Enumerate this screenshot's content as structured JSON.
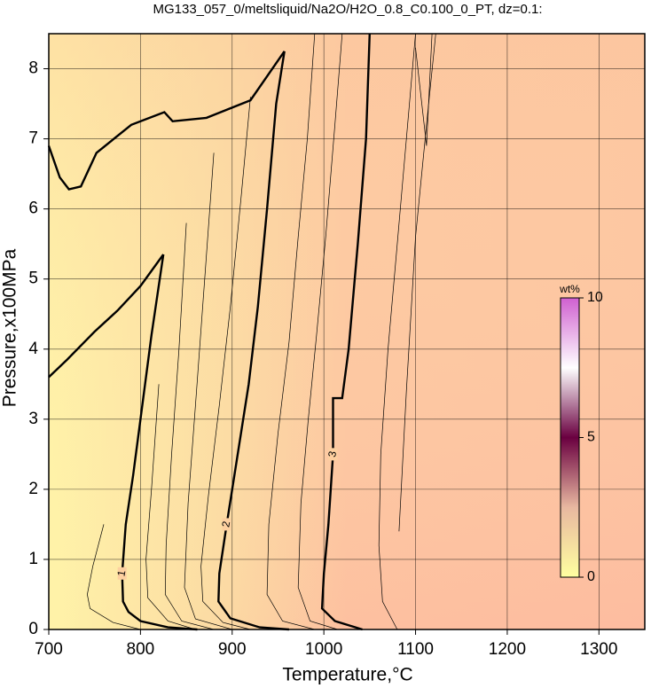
{
  "chart_data": {
    "type": "contour",
    "title": "MG133_057_0/meltsliquid/Na2O/H2O_0.8_C0.100_0_PT, dz=0.1:",
    "x_label": "Temperature,°C",
    "y_label": "Pressure,x100MPa",
    "xlim": [
      700,
      1350
    ],
    "xticks": [
      700,
      800,
      900,
      1000,
      1100,
      1200,
      1300
    ],
    "ylim": [
      0,
      8.5
    ],
    "yticks": [
      0,
      1,
      2,
      3,
      4,
      5,
      6,
      7,
      8
    ],
    "grid": true,
    "colorbar": {
      "label": "wt%",
      "zlim": [
        0,
        10
      ],
      "zticks": [
        0,
        5,
        10
      ],
      "colors": [
        "#ffffa0",
        "#e8b8a0",
        "#6a0040",
        "#ffffff",
        "#d060d0"
      ]
    },
    "contours": [
      {
        "label": "1",
        "bold": true,
        "x": [
          825,
          812,
          800,
          792,
          784,
          780,
          781,
          787,
          800,
          830,
          862
        ],
        "y": [
          5.35,
          4.2,
          3.0,
          2.2,
          1.5,
          0.8,
          0.4,
          0.25,
          0.12,
          0.03,
          0
        ]
      },
      {
        "label": "2",
        "bold": true,
        "x": [
          957,
          948,
          938,
          928,
          918,
          906,
          894,
          886,
          885,
          898,
          930,
          962
        ],
        "y": [
          8.25,
          7.5,
          6.0,
          4.6,
          3.5,
          2.5,
          1.5,
          0.8,
          0.4,
          0.16,
          0.03,
          0
        ]
      },
      {
        "label": "3",
        "bold": true,
        "x": [
          1050,
          1046,
          1037,
          1027,
          1020,
          1010,
          1010,
          1005,
          1000,
          998,
          1012,
          1042
        ],
        "y": [
          8.5,
          7.0,
          5.5,
          4.0,
          3.3,
          3.3,
          2.5,
          1.5,
          0.8,
          0.3,
          0.12,
          0
        ]
      },
      {
        "bold": true,
        "x": [
          700,
          712,
          722,
          735,
          752,
          790,
          826,
          835,
          872,
          920,
          957
        ],
        "y": [
          6.9,
          6.45,
          6.28,
          6.32,
          6.8,
          7.2,
          7.38,
          7.25,
          7.3,
          7.55,
          8.25
        ]
      },
      {
        "bold": true,
        "x": [
          700,
          720,
          750,
          775,
          800,
          825
        ],
        "y": [
          3.6,
          3.85,
          4.25,
          4.55,
          4.9,
          5.35
        ]
      },
      {
        "bold": false,
        "x": [
          760,
          748,
          742,
          745,
          770,
          800
        ],
        "y": [
          1.5,
          0.9,
          0.5,
          0.3,
          0.1,
          0
        ]
      },
      {
        "bold": false,
        "x": [
          820,
          812,
          806,
          808,
          830,
          860
        ],
        "y": [
          3.5,
          2.0,
          1.0,
          0.45,
          0.12,
          0
        ]
      },
      {
        "bold": false,
        "x": [
          850,
          842,
          834,
          828,
          827,
          845,
          880
        ],
        "y": [
          5.8,
          4.0,
          2.5,
          1.2,
          0.5,
          0.12,
          0
        ]
      },
      {
        "bold": false,
        "x": [
          880,
          870,
          860,
          852,
          848,
          860,
          900
        ],
        "y": [
          6.8,
          5.0,
          3.2,
          1.8,
          0.6,
          0.15,
          0
        ]
      },
      {
        "bold": false,
        "x": [
          920,
          910,
          898,
          886,
          874,
          866,
          868,
          890,
          920
        ],
        "y": [
          7.6,
          6.2,
          4.6,
          3.2,
          1.9,
          0.9,
          0.4,
          0.1,
          0
        ]
      },
      {
        "bold": false,
        "x": [
          990,
          982,
          972,
          962,
          950,
          940,
          938,
          955,
          990
        ],
        "y": [
          8.5,
          7.0,
          5.6,
          4.1,
          2.8,
          1.5,
          0.5,
          0.12,
          0
        ]
      },
      {
        "bold": false,
        "x": [
          1020,
          1012,
          1002,
          992,
          983,
          975,
          972,
          985,
          1015
        ],
        "y": [
          8.5,
          7.2,
          5.6,
          4.2,
          3.0,
          1.8,
          0.6,
          0.12,
          0
        ]
      },
      {
        "bold": false,
        "x": [
          1100,
          1090,
          1080,
          1070,
          1062,
          1060,
          1064,
          1080
        ],
        "y": [
          8.5,
          7.0,
          5.5,
          4.0,
          2.5,
          1.2,
          0.4,
          0
        ]
      },
      {
        "bold": false,
        "x": [
          1100,
          1106,
          1112,
          1118
        ],
        "y": [
          8.3,
          7.6,
          6.9,
          8.5
        ]
      },
      {
        "bold": false,
        "x": [
          1122,
          1112,
          1100,
          1090,
          1082
        ],
        "y": [
          8.5,
          7.2,
          5.6,
          3.4,
          1.4
        ]
      }
    ]
  }
}
